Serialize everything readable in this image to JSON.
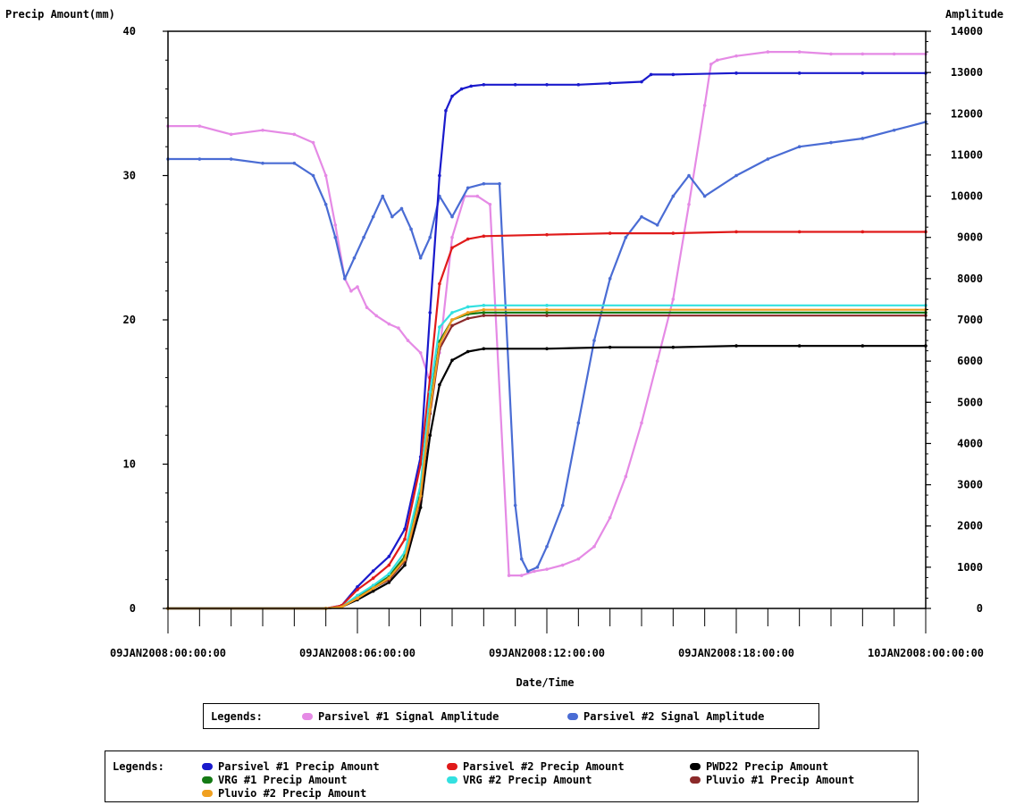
{
  "chart_data": {
    "type": "line",
    "xlabel": "Date/Time",
    "y1label": "Precip Amount(mm)",
    "y2label": "Amplitude",
    "x_range": [
      "09JAN2008:00:00:00",
      "10JAN2008:00:00:00"
    ],
    "x_ticks": [
      "09JAN2008:00:00:00",
      "09JAN2008:06:00:00",
      "09JAN2008:12:00:00",
      "09JAN2008:18:00:00",
      "10JAN2008:00:00:00"
    ],
    "y1lim": [
      0,
      40
    ],
    "y1_ticks": [
      "0",
      "10",
      "20",
      "30",
      "40"
    ],
    "y2lim": [
      0,
      14000
    ],
    "y2_ticks": [
      "0",
      "1000",
      "2000",
      "3000",
      "4000",
      "5000",
      "6000",
      "7000",
      "8000",
      "9000",
      "10000",
      "11000",
      "12000",
      "13000",
      "14000"
    ],
    "grid": false,
    "amplitude_series": [
      {
        "name": "Parsivel #1 Signal Amplitude",
        "color": "#e58ae5",
        "axis": "right",
        "x_hours": [
          0,
          1,
          2,
          3,
          4,
          4.6,
          5,
          5.3,
          5.6,
          5.8,
          6.0,
          6.3,
          6.6,
          7.0,
          7.3,
          7.6,
          8.0,
          8.3,
          8.6,
          9.0,
          9.4,
          9.8,
          10.2,
          10.8,
          11.2,
          11.6,
          12.0,
          12.5,
          13.0,
          13.5,
          14.0,
          14.5,
          15.0,
          15.5,
          16.0,
          16.5,
          17.0,
          17.2,
          17.4,
          18.0,
          19.0,
          20.0,
          21.0,
          22.0,
          23.0,
          24.0
        ],
        "values": [
          11700,
          11700,
          11500,
          11600,
          11500,
          11300,
          10500,
          9300,
          8000,
          7700,
          7800,
          7300,
          7100,
          6900,
          6800,
          6500,
          6200,
          5500,
          6200,
          9000,
          10000,
          10000,
          9800,
          800,
          800,
          900,
          950,
          1050,
          1200,
          1500,
          2200,
          3200,
          4500,
          6000,
          7500,
          9800,
          12200,
          13200,
          13300,
          13400,
          13500,
          13500,
          13450,
          13450,
          13450,
          13450
        ]
      },
      {
        "name": "Parsivel #2 Signal Amplitude",
        "color": "#4a6cd4",
        "axis": "right",
        "x_hours": [
          0,
          1,
          2,
          3,
          4,
          4.6,
          5.0,
          5.3,
          5.6,
          5.9,
          6.2,
          6.5,
          6.8,
          7.1,
          7.4,
          7.7,
          8.0,
          8.3,
          8.6,
          9.0,
          9.5,
          10.0,
          10.5,
          11.0,
          11.2,
          11.4,
          11.7,
          12.0,
          12.5,
          13.0,
          13.5,
          14.0,
          14.5,
          15.0,
          15.5,
          16.0,
          16.5,
          17.0,
          18.0,
          19.0,
          20.0,
          21.0,
          22.0,
          23.0,
          24.0
        ],
        "values": [
          10900,
          10900,
          10900,
          10800,
          10800,
          10500,
          9800,
          9000,
          8000,
          8500,
          9000,
          9500,
          10000,
          9500,
          9700,
          9200,
          8500,
          9000,
          10000,
          9500,
          10200,
          10300,
          10300,
          2500,
          1200,
          900,
          1000,
          1500,
          2500,
          4500,
          6500,
          8000,
          9000,
          9500,
          9300,
          10000,
          10500,
          10000,
          10500,
          10900,
          11200,
          11300,
          11400,
          11600,
          11800
        ]
      }
    ],
    "precip_series": [
      {
        "name": "Parsivel #1 Precip Amount",
        "color": "#1a1acc",
        "axis": "left",
        "x_hours": [
          0,
          5.0,
          5.5,
          6.0,
          6.5,
          7.0,
          7.5,
          8.0,
          8.3,
          8.6,
          8.8,
          9.0,
          9.3,
          9.6,
          10.0,
          11.0,
          12.0,
          13.0,
          14.0,
          15.0,
          15.3,
          16.0,
          18.0,
          20.0,
          22.0,
          24.0
        ],
        "values": [
          0,
          0,
          0.2,
          1.5,
          2.6,
          3.6,
          5.5,
          10.5,
          20.5,
          30.0,
          34.5,
          35.5,
          36.0,
          36.2,
          36.3,
          36.3,
          36.3,
          36.3,
          36.4,
          36.5,
          37.0,
          37.0,
          37.1,
          37.1,
          37.1,
          37.1
        ]
      },
      {
        "name": "Parsivel #2 Precip Amount",
        "color": "#e01a1a",
        "axis": "left",
        "x_hours": [
          0,
          5.0,
          5.5,
          6.0,
          6.5,
          7.0,
          7.5,
          8.0,
          8.3,
          8.6,
          9.0,
          9.5,
          10.0,
          12.0,
          14.0,
          16.0,
          18.0,
          20.0,
          22.0,
          24.0
        ],
        "values": [
          0,
          0,
          0.2,
          1.3,
          2.1,
          3.0,
          4.8,
          10.0,
          16.0,
          22.5,
          25.0,
          25.6,
          25.8,
          25.9,
          26.0,
          26.0,
          26.1,
          26.1,
          26.1,
          26.1
        ]
      },
      {
        "name": "PWD22 Precip Amount",
        "color": "#000000",
        "axis": "left",
        "x_hours": [
          0,
          5.0,
          5.5,
          6.0,
          6.5,
          7.0,
          7.5,
          8.0,
          8.3,
          8.6,
          9.0,
          9.5,
          10.0,
          12.0,
          14.0,
          16.0,
          18.0,
          20.0,
          22.0,
          24.0
        ],
        "values": [
          0,
          0,
          0.1,
          0.6,
          1.2,
          1.8,
          3.0,
          7.0,
          12.0,
          15.5,
          17.2,
          17.8,
          18.0,
          18.0,
          18.1,
          18.1,
          18.2,
          18.2,
          18.2,
          18.2
        ]
      },
      {
        "name": "VRG #1 Precip Amount",
        "color": "#157a15",
        "axis": "left",
        "x_hours": [
          0,
          5.0,
          5.5,
          6.0,
          6.5,
          7.0,
          7.5,
          8.0,
          8.3,
          8.6,
          9.0,
          9.5,
          10.0,
          12.0,
          24.0
        ],
        "values": [
          0,
          0,
          0.1,
          0.8,
          1.5,
          2.2,
          3.6,
          8.0,
          14.0,
          18.5,
          20.0,
          20.4,
          20.5,
          20.5,
          20.5
        ]
      },
      {
        "name": "VRG #2 Precip Amount",
        "color": "#33e0e0",
        "axis": "left",
        "x_hours": [
          0,
          5.0,
          5.5,
          6.0,
          6.5,
          7.0,
          7.5,
          8.0,
          8.3,
          8.6,
          9.0,
          9.5,
          10.0,
          12.0,
          24.0
        ],
        "values": [
          0,
          0,
          0.1,
          0.9,
          1.6,
          2.4,
          3.9,
          8.6,
          15.0,
          19.5,
          20.5,
          20.9,
          21.0,
          21.0,
          21.0
        ]
      },
      {
        "name": "Pluvio #1 Precip Amount",
        "color": "#8b2a2a",
        "axis": "left",
        "x_hours": [
          0,
          5.0,
          5.5,
          6.0,
          6.5,
          7.0,
          7.5,
          8.0,
          8.3,
          8.6,
          9.0,
          9.5,
          10.0,
          12.0,
          24.0
        ],
        "values": [
          0,
          0,
          0.1,
          0.7,
          1.4,
          2.0,
          3.3,
          7.6,
          13.5,
          18.0,
          19.6,
          20.1,
          20.3,
          20.3,
          20.3
        ]
      },
      {
        "name": "Pluvio #2 Precip Amount",
        "color": "#f0a020",
        "axis": "left",
        "x_hours": [
          0,
          5.0,
          5.5,
          6.0,
          6.5,
          7.0,
          7.5,
          8.0,
          8.3,
          8.6,
          9.0,
          9.5,
          10.0,
          12.0,
          24.0
        ],
        "values": [
          0,
          0,
          0.1,
          0.7,
          1.4,
          2.1,
          3.4,
          7.8,
          13.8,
          18.3,
          20.0,
          20.5,
          20.7,
          20.7,
          20.7
        ]
      }
    ]
  },
  "legend1": {
    "title": "Legends:",
    "items": [
      {
        "label": "Parsivel #1 Signal Amplitude",
        "color": "#e58ae5"
      },
      {
        "label": "Parsivel #2 Signal Amplitude",
        "color": "#4a6cd4"
      }
    ]
  },
  "legend2": {
    "title": "Legends:",
    "items": [
      {
        "label": "Parsivel #1 Precip Amount",
        "color": "#1a1acc"
      },
      {
        "label": "Parsivel #2 Precip Amount",
        "color": "#e01a1a"
      },
      {
        "label": "PWD22 Precip Amount",
        "color": "#000000"
      },
      {
        "label": "VRG #1 Precip Amount",
        "color": "#157a15"
      },
      {
        "label": "VRG #2 Precip Amount",
        "color": "#33e0e0"
      },
      {
        "label": "Pluvio #1 Precip Amount",
        "color": "#8b2a2a"
      },
      {
        "label": "Pluvio #2 Precip Amount",
        "color": "#f0a020"
      }
    ]
  }
}
